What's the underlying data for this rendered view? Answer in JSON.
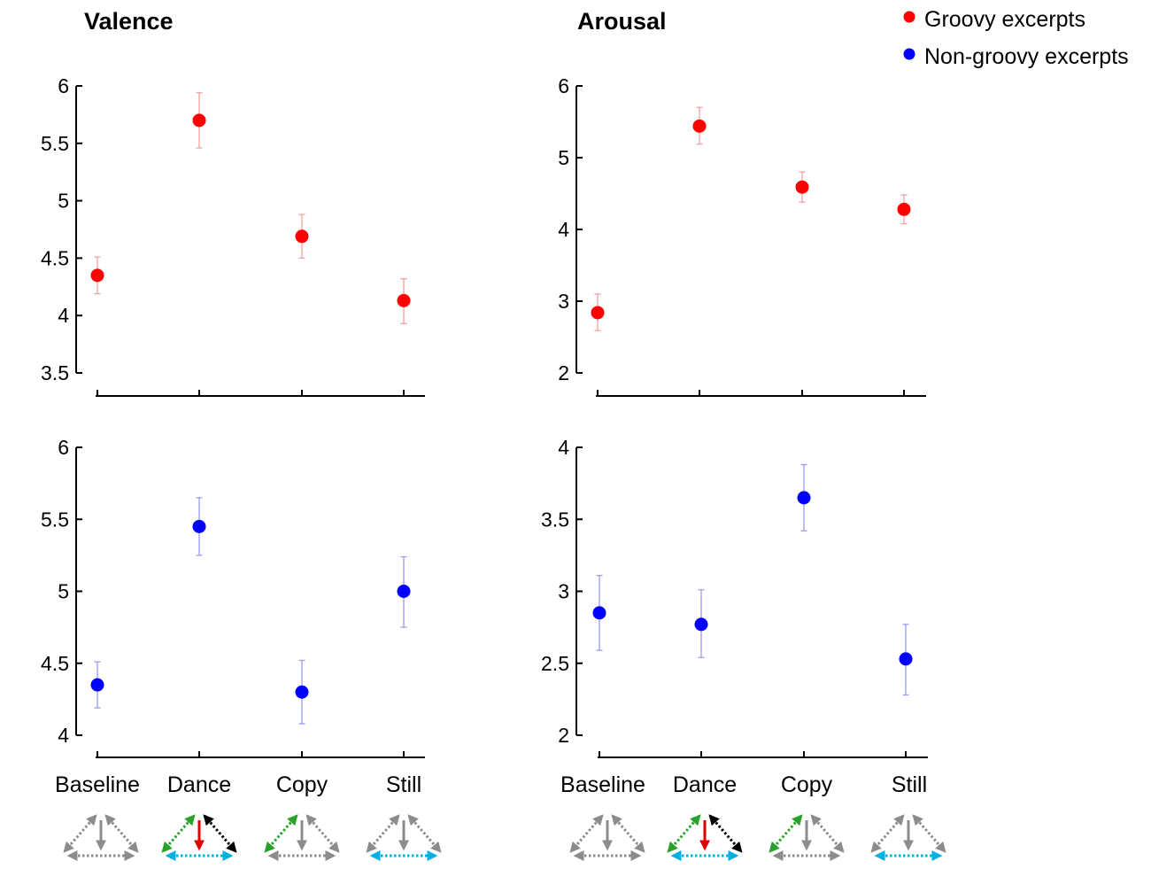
{
  "legend": {
    "groovy": {
      "label": "Groovy excerpts",
      "color": "#ff0000",
      "error_color": "#f4a0a0"
    },
    "nongroovy": {
      "label": "Non-groovy excerpts",
      "color": "#0000ff",
      "error_color": "#9c9cf2"
    }
  },
  "categories": [
    "Baseline",
    "Dance",
    "Copy",
    "Still"
  ],
  "icon_colors": {
    "neutral": "#8c8c8c",
    "green": "#2ca02c",
    "red": "#e00000",
    "black": "#000000",
    "cyan": "#00b0e0"
  },
  "chart_data": [
    {
      "type": "scatter",
      "title": "Valence",
      "series_name": "Groovy excerpts",
      "series_key": "groovy",
      "categories": [
        "Baseline",
        "Dance",
        "Copy",
        "Still"
      ],
      "values": [
        4.35,
        5.7,
        4.69,
        4.13
      ],
      "err_low": [
        4.19,
        5.46,
        4.5,
        3.93
      ],
      "err_high": [
        4.51,
        5.94,
        4.88,
        4.32
      ],
      "ylim": [
        3.5,
        6
      ],
      "yticks": [
        3.5,
        4,
        4.5,
        5,
        5.5,
        6
      ],
      "ytick_labels": [
        "3.5",
        "4",
        "4.5",
        "5",
        "5.5",
        "6"
      ],
      "xlabel": "",
      "ylabel": "",
      "grid": false
    },
    {
      "type": "scatter",
      "title": "Arousal",
      "series_name": "Groovy excerpts",
      "series_key": "groovy",
      "categories": [
        "Baseline",
        "Dance",
        "Copy",
        "Still"
      ],
      "values": [
        2.84,
        5.44,
        4.59,
        4.28
      ],
      "err_low": [
        2.59,
        5.19,
        4.38,
        4.08
      ],
      "err_high": [
        3.1,
        5.7,
        4.8,
        4.48
      ],
      "ylim": [
        2,
        6
      ],
      "yticks": [
        2,
        3,
        4,
        5,
        6
      ],
      "ytick_labels": [
        "2",
        "3",
        "4",
        "5",
        "6"
      ],
      "xlabel": "",
      "ylabel": "",
      "grid": false
    },
    {
      "type": "scatter",
      "title": "",
      "series_name": "Non-groovy excerpts",
      "series_key": "nongroovy",
      "categories": [
        "Baseline",
        "Dance",
        "Copy",
        "Still"
      ],
      "values": [
        4.35,
        5.45,
        4.3,
        5.0
      ],
      "err_low": [
        4.19,
        5.25,
        4.08,
        4.75
      ],
      "err_high": [
        4.51,
        5.65,
        4.52,
        5.24
      ],
      "ylim": [
        4,
        6
      ],
      "yticks": [
        4,
        4.5,
        5,
        5.5,
        6
      ],
      "ytick_labels": [
        "4",
        "4.5",
        "5",
        "5.5",
        "6"
      ],
      "xlabel": "",
      "ylabel": "",
      "grid": false
    },
    {
      "type": "scatter",
      "title": "",
      "series_name": "Non-groovy excerpts",
      "series_key": "nongroovy",
      "categories": [
        "Baseline",
        "Dance",
        "Copy",
        "Still"
      ],
      "values": [
        2.85,
        2.77,
        3.65,
        2.53
      ],
      "err_low": [
        2.59,
        2.54,
        3.42,
        2.28
      ],
      "err_high": [
        3.11,
        3.01,
        3.88,
        2.77
      ],
      "ylim": [
        2,
        4
      ],
      "yticks": [
        2,
        2.5,
        3,
        3.5,
        4
      ],
      "ytick_labels": [
        "2",
        "2.5",
        "3",
        "3.5",
        "4"
      ],
      "xlabel": "",
      "ylabel": "",
      "grid": false
    }
  ],
  "condition_icons": [
    {
      "condition": "Baseline",
      "left_edge": "neutral",
      "right_edge": "neutral",
      "bottom_edge": "neutral",
      "down_arrow": "neutral"
    },
    {
      "condition": "Dance",
      "left_edge": "green",
      "right_edge": "black",
      "bottom_edge": "cyan",
      "down_arrow": "red"
    },
    {
      "condition": "Copy",
      "left_edge": "green",
      "right_edge": "neutral",
      "bottom_edge": "neutral",
      "down_arrow": "neutral"
    },
    {
      "condition": "Still",
      "left_edge": "neutral",
      "right_edge": "neutral",
      "bottom_edge": "cyan",
      "down_arrow": "neutral"
    }
  ]
}
